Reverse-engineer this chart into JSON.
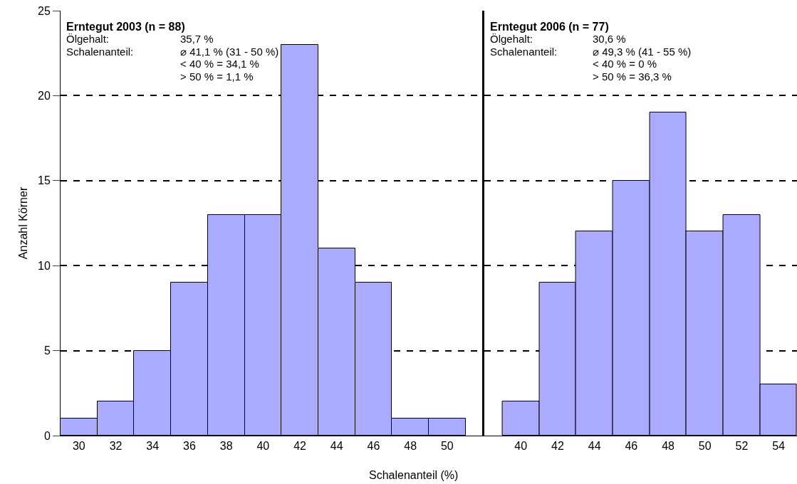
{
  "chart_data": [
    {
      "type": "histogram",
      "title": "Erntegut 2003 (n = 88)",
      "ylabel": "Anzahl Körner",
      "xlabel": "Schalenanteil (%)",
      "annotations": [
        "Ölgehalt:",
        "35,7 %",
        "Schalenanteil:",
        "⌀ 41,1 % (31 - 50 %)",
        "< 40 % = 34,1 %",
        "> 50 % = 1,1 %"
      ],
      "bins": [
        29,
        31,
        33,
        35,
        37,
        39,
        41,
        43,
        45,
        47,
        49,
        51
      ],
      "values": [
        1,
        2,
        5,
        9,
        13,
        13,
        23,
        11,
        9,
        1,
        1
      ],
      "color": "#aaaaff",
      "xlim": [
        29,
        52
      ],
      "xticks": [
        30,
        32,
        34,
        36,
        38,
        40,
        42,
        44,
        46,
        48,
        50
      ],
      "ylim": [
        0,
        25
      ],
      "yticks": [
        0,
        5,
        10,
        15,
        20,
        25
      ],
      "grid": "y"
    },
    {
      "type": "histogram",
      "title": "Erntegut 2006 (n = 77)",
      "annotations": [
        "Ölgehalt:",
        "30,6 %",
        "Schalenanteil:",
        "⌀ 49,3 % (41 - 55 %)",
        "< 40 % = 0 %",
        "> 50 % = 36,3 %"
      ],
      "bins": [
        39,
        41,
        43,
        45,
        47,
        49,
        51,
        53,
        55
      ],
      "values": [
        2,
        9,
        12,
        15,
        19,
        12,
        13,
        3
      ],
      "color": "#aaaaff",
      "xlim": [
        38,
        55
      ],
      "xticks": [
        40,
        42,
        44,
        46,
        48,
        50,
        52,
        54
      ],
      "ylim": [
        0,
        25
      ],
      "yticks": [
        0,
        5,
        10,
        15,
        20,
        25
      ],
      "grid": "y",
      "tick_labels": "x"
    }
  ]
}
